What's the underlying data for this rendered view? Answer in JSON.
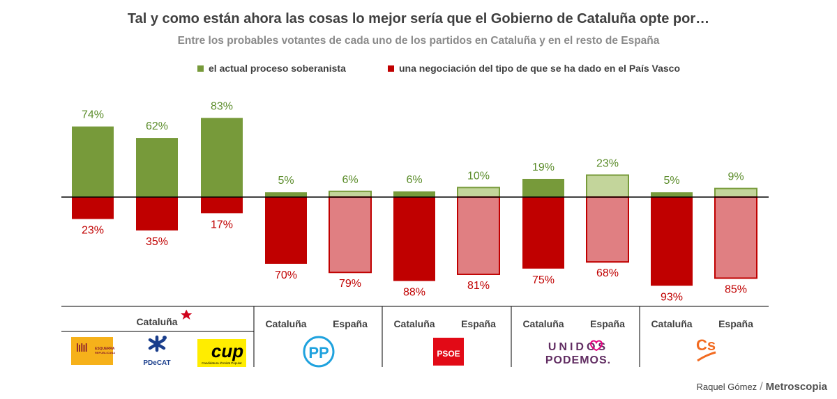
{
  "title": "Tal y como están ahora las cosas lo mejor sería que el Gobierno de Cataluña opte por…",
  "subtitle": "Entre los probables votantes de cada uno de los partidos en Cataluña y en el resto de España",
  "colors": {
    "green": "#779a3a",
    "green_light": "#c3d59b",
    "red": "#c00000",
    "red_light": "#e07f82",
    "text_green": "#5b8c2a",
    "text_red": "#c00000"
  },
  "credit": {
    "author": "Raquel Gómez",
    "brand": "Metroscopia"
  },
  "party_logos": {
    "erc": {
      "icon": "erc-logo",
      "text": "ESQUERRA REPUBLICANA"
    },
    "pdecat": {
      "icon": "pdecat-logo",
      "text": "PDeCAT"
    },
    "cup": {
      "icon": "cup-logo",
      "text": "CUP",
      "sub": "Candidatura d'Unitat Popular"
    },
    "pp": {
      "icon": "pp-logo",
      "text": "PP"
    },
    "psoe": {
      "icon": "psoe-logo",
      "text": "PSOE"
    },
    "podemos": {
      "icon": "unidos-podemos-logo",
      "text1": "UNIDOS",
      "text2": "PODEMOS."
    },
    "cs": {
      "icon": "ciudadanos-logo",
      "text": "Cs"
    }
  },
  "chart_data": {
    "type": "bar",
    "series": [
      {
        "name": "el actual proceso soberanista",
        "values": [
          74,
          62,
          83,
          5,
          6,
          6,
          10,
          19,
          23,
          5,
          9
        ]
      },
      {
        "name": "una negociación del tipo de que se ha dado en el País Vasco",
        "values": [
          23,
          35,
          17,
          70,
          79,
          88,
          81,
          75,
          68,
          93,
          85
        ]
      }
    ],
    "categories": [
      "Cataluña",
      "Cataluña",
      "Cataluña",
      "Cataluña",
      "España",
      "Cataluña",
      "España",
      "Cataluña",
      "España",
      "Cataluña",
      "España"
    ],
    "value_labels": {
      "positive": [
        "74%",
        "62%",
        "83%",
        "5%",
        "6%",
        "6%",
        "10%",
        "19%",
        "23%",
        "5%",
        "9%"
      ],
      "negative": [
        "23%",
        "35%",
        "17%",
        "70%",
        "79%",
        "88%",
        "81%",
        "75%",
        "68%",
        "93%",
        "85%"
      ]
    },
    "region_shading": [
      "Cataluña",
      "Cataluña",
      "Cataluña",
      "Cataluña",
      "España",
      "Cataluña",
      "España",
      "Cataluña",
      "España",
      "Cataluña",
      "España"
    ],
    "group_label": "Cataluña",
    "ylim": [
      -100,
      100
    ],
    "grid": false,
    "legend_position": "top"
  }
}
